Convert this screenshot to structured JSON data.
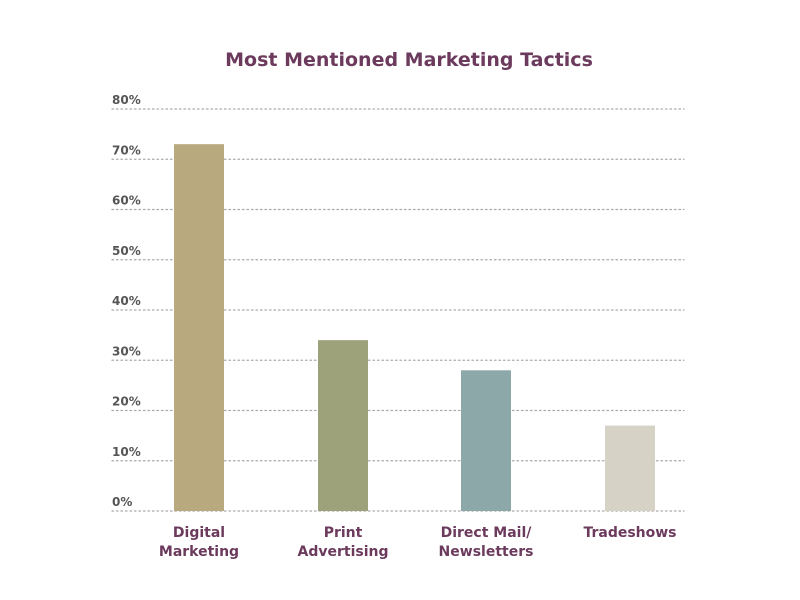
{
  "colors": {
    "title": "#6b3a5c",
    "category_label": "#6b3a5c",
    "tick_label": "#555555",
    "grid": "#a9a9a9",
    "bars": [
      "#b9a97f",
      "#9da27a",
      "#8ca8a9",
      "#d6d2c5"
    ]
  },
  "chart_data": {
    "type": "bar",
    "title": "Most Mentioned Marketing Tactics",
    "xlabel": "",
    "ylabel": "",
    "ylim": [
      0,
      80
    ],
    "grid": true,
    "grid_style": "dotted",
    "legend": "none",
    "yticks": [
      "0%",
      "10%",
      "20%",
      "30%",
      "40%",
      "50%",
      "60%",
      "70%",
      "80%"
    ],
    "categories": [
      [
        "Digital",
        "Marketing"
      ],
      [
        "Print",
        "Advertising"
      ],
      [
        "Direct Mail/",
        "Newsletters"
      ],
      [
        "Tradeshows"
      ]
    ],
    "values": [
      73,
      34,
      28,
      17
    ]
  }
}
